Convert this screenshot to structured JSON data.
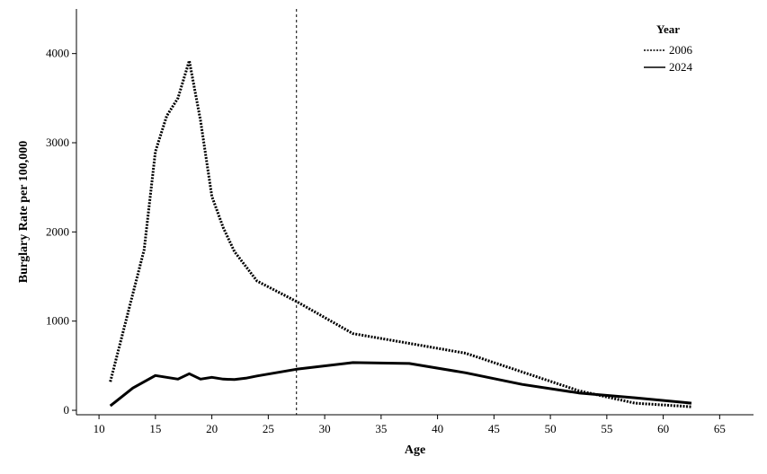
{
  "chart_data": {
    "type": "line",
    "title": "",
    "xlabel": "Age",
    "ylabel": "Burglary Rate per 100,000",
    "xlim": [
      8,
      68
    ],
    "ylim": [
      -50,
      4500
    ],
    "x_ticks": [
      10,
      15,
      20,
      25,
      30,
      35,
      40,
      45,
      50,
      55,
      60,
      65
    ],
    "y_ticks": [
      0,
      1000,
      2000,
      3000,
      4000
    ],
    "grid": false,
    "legend": {
      "title": "Year",
      "position": "top-right"
    },
    "reference_line": {
      "x": 27.5,
      "style": "dashed"
    },
    "series": [
      {
        "name": "2006",
        "style": "dotted",
        "color": "#000000",
        "points": [
          [
            11,
            320
          ],
          [
            14,
            1800
          ],
          [
            15,
            2900
          ],
          [
            16,
            3300
          ],
          [
            17,
            3500
          ],
          [
            18,
            3920
          ],
          [
            19,
            3250
          ],
          [
            20,
            2400
          ],
          [
            21,
            2050
          ],
          [
            22,
            1780
          ],
          [
            24,
            1450
          ],
          [
            27.5,
            1220
          ],
          [
            32.5,
            860
          ],
          [
            37.5,
            750
          ],
          [
            42.5,
            640
          ],
          [
            47.5,
            430
          ],
          [
            52.5,
            220
          ],
          [
            57.5,
            80
          ],
          [
            62.5,
            40
          ]
        ]
      },
      {
        "name": "2024",
        "style": "solid",
        "color": "#000000",
        "points": [
          [
            11,
            50
          ],
          [
            13,
            250
          ],
          [
            15,
            390
          ],
          [
            17,
            350
          ],
          [
            18,
            410
          ],
          [
            19,
            350
          ],
          [
            20,
            370
          ],
          [
            21,
            350
          ],
          [
            22,
            345
          ],
          [
            23,
            360
          ],
          [
            24,
            385
          ],
          [
            27.5,
            460
          ],
          [
            32.5,
            535
          ],
          [
            37.5,
            525
          ],
          [
            42.5,
            420
          ],
          [
            47.5,
            290
          ],
          [
            52.5,
            195
          ],
          [
            57.5,
            140
          ],
          [
            62.5,
            80
          ]
        ]
      }
    ]
  }
}
